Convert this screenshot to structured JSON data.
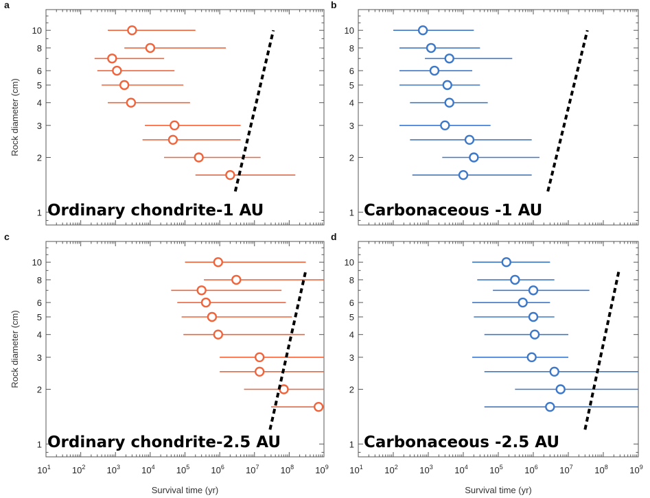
{
  "figure": {
    "y_axis_title": "Rock diameter (cm)",
    "x_axis_title": "Survival time (yr)"
  },
  "chart_data": [
    {
      "panel": "a",
      "type": "scatter",
      "overlay_label": "Ordinary chondrite-1 AU",
      "color": "#f0643c",
      "xscale": "log",
      "yscale": "log",
      "xlim": [
        10,
        1000000000
      ],
      "ylim": [
        0.85,
        13
      ],
      "xlabel": "",
      "ylabel": "Rock diameter (cm)",
      "yticks": [
        1,
        2,
        3,
        4,
        5,
        6,
        8,
        10
      ],
      "points": [
        {
          "d": 10,
          "t": 3000,
          "lo": 600,
          "hi": 200000
        },
        {
          "d": 8,
          "t": 10000,
          "lo": 1800,
          "hi": 1500000
        },
        {
          "d": 7,
          "t": 800,
          "lo": 250,
          "hi": 25000
        },
        {
          "d": 6,
          "t": 1100,
          "lo": 300,
          "hi": 50000
        },
        {
          "d": 5,
          "t": 1800,
          "lo": 400,
          "hi": 90000
        },
        {
          "d": 4,
          "t": 2800,
          "lo": 600,
          "hi": 140000
        },
        {
          "d": 3,
          "t": 50000,
          "lo": 7000,
          "hi": 4000000
        },
        {
          "d": 2.5,
          "t": 45000,
          "lo": 6000,
          "hi": 4000000
        },
        {
          "d": 2,
          "t": 250000,
          "lo": 25000,
          "hi": 15000000
        },
        {
          "d": 1.6,
          "t": 2000000,
          "lo": 200000,
          "hi": 150000000
        }
      ],
      "trend": {
        "x": [
          2800000,
          35000000
        ],
        "y": [
          1.3,
          10
        ]
      }
    },
    {
      "panel": "b",
      "type": "scatter",
      "overlay_label": "Carbonaceous -1 AU",
      "color": "#3d78c8",
      "xscale": "log",
      "yscale": "log",
      "xlim": [
        10,
        1000000000
      ],
      "ylim": [
        0.85,
        13
      ],
      "xlabel": "",
      "ylabel": "",
      "yticks": [
        1,
        2,
        3,
        4,
        5,
        6,
        8,
        10
      ],
      "points": [
        {
          "d": 10,
          "t": 700,
          "lo": 100,
          "hi": 20000
        },
        {
          "d": 8,
          "t": 1200,
          "lo": 150,
          "hi": 30000
        },
        {
          "d": 7,
          "t": 4000,
          "lo": 800,
          "hi": 250000
        },
        {
          "d": 6,
          "t": 1500,
          "lo": 150,
          "hi": 18000
        },
        {
          "d": 5,
          "t": 3500,
          "lo": 150,
          "hi": 30000
        },
        {
          "d": 4,
          "t": 4000,
          "lo": 300,
          "hi": 50000
        },
        {
          "d": 3,
          "t": 3000,
          "lo": 150,
          "hi": 60000
        },
        {
          "d": 2.5,
          "t": 15000,
          "lo": 300,
          "hi": 900000
        },
        {
          "d": 2,
          "t": 20000,
          "lo": 2500,
          "hi": 1500000
        },
        {
          "d": 1.6,
          "t": 10000,
          "lo": 350,
          "hi": 900000
        }
      ],
      "trend": {
        "x": [
          2600000,
          35000000
        ],
        "y": [
          1.3,
          10
        ]
      }
    },
    {
      "panel": "c",
      "type": "scatter",
      "overlay_label": "Ordinary chondrite-2.5 AU",
      "color": "#f0643c",
      "xscale": "log",
      "yscale": "log",
      "xlim": [
        10,
        1000000000
      ],
      "ylim": [
        0.85,
        13
      ],
      "xlabel": "Survival time (yr)",
      "ylabel": "Rock diameter (cm)",
      "yticks": [
        1,
        2,
        3,
        4,
        5,
        6,
        8,
        10
      ],
      "points": [
        {
          "d": 10,
          "t": 900000,
          "lo": 100000,
          "hi": 300000000
        },
        {
          "d": 8,
          "t": 3000000,
          "lo": 350000,
          "hi": 1000000000
        },
        {
          "d": 7,
          "t": 300000,
          "lo": 40000,
          "hi": 60000000
        },
        {
          "d": 6,
          "t": 400000,
          "lo": 60000,
          "hi": 80000000
        },
        {
          "d": 5,
          "t": 600000,
          "lo": 80000,
          "hi": 120000000
        },
        {
          "d": 4,
          "t": 900000,
          "lo": 90000,
          "hi": 280000000
        },
        {
          "d": 3,
          "t": 14000000,
          "lo": 1000000,
          "hi": 1000000000
        },
        {
          "d": 2.5,
          "t": 14000000,
          "lo": 1000000,
          "hi": 1000000000
        },
        {
          "d": 2,
          "t": 70000000,
          "lo": 5000000,
          "hi": 1000000000
        },
        {
          "d": 1.6,
          "t": 700000000,
          "lo": 30000000,
          "hi": 1000000000
        }
      ],
      "trend": {
        "x": [
          28000000,
          300000000
        ],
        "y": [
          1.2,
          9
        ]
      }
    },
    {
      "panel": "d",
      "type": "scatter",
      "overlay_label": "Carbonaceous -2.5 AU",
      "color": "#3d78c8",
      "xscale": "log",
      "yscale": "log",
      "xlim": [
        10,
        1000000000
      ],
      "ylim": [
        0.85,
        13
      ],
      "xlabel": "Survival time (yr)",
      "ylabel": "",
      "yticks": [
        1,
        2,
        3,
        4,
        5,
        6,
        8,
        10
      ],
      "points": [
        {
          "d": 10,
          "t": 170000,
          "lo": 18000,
          "hi": 3000000
        },
        {
          "d": 8,
          "t": 300000,
          "lo": 25000,
          "hi": 4000000
        },
        {
          "d": 7,
          "t": 1000000,
          "lo": 70000,
          "hi": 40000000
        },
        {
          "d": 6,
          "t": 500000,
          "lo": 18000,
          "hi": 3000000
        },
        {
          "d": 5,
          "t": 1000000,
          "lo": 20000,
          "hi": 4000000
        },
        {
          "d": 4,
          "t": 1100000,
          "lo": 40000,
          "hi": 10000000
        },
        {
          "d": 3,
          "t": 900000,
          "lo": 18000,
          "hi": 10000000
        },
        {
          "d": 2.5,
          "t": 4000000,
          "lo": 40000,
          "hi": 1000000000
        },
        {
          "d": 2,
          "t": 6000000,
          "lo": 300000,
          "hi": 1000000000
        },
        {
          "d": 1.6,
          "t": 3000000,
          "lo": 40000,
          "hi": 1000000000
        }
      ],
      "trend": {
        "x": [
          30000000,
          280000000
        ],
        "y": [
          1.2,
          9
        ]
      }
    }
  ]
}
